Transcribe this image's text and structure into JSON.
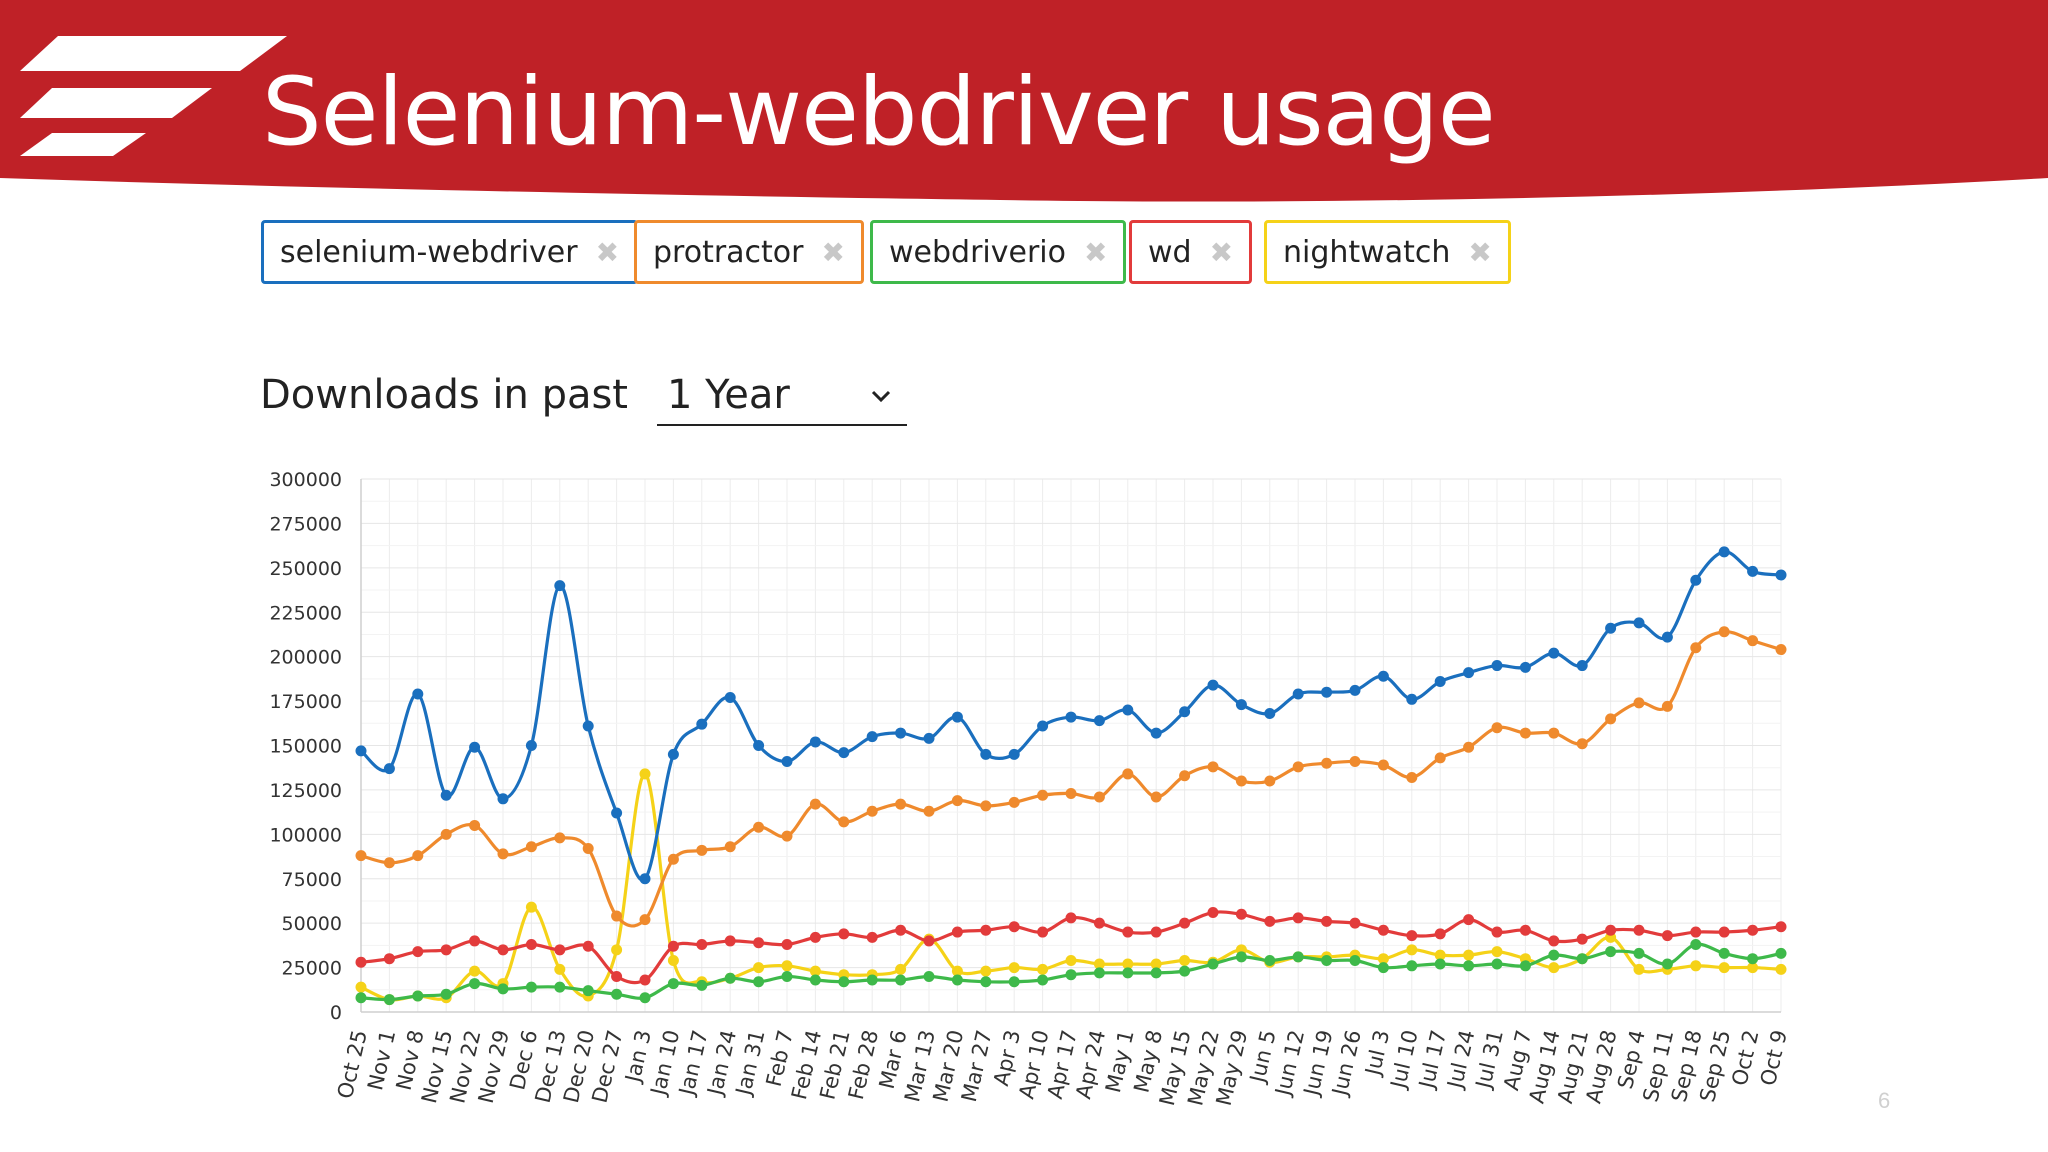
{
  "slide": {
    "title": "Selenium-webdriver usage",
    "page_number": "6",
    "colors": {
      "header": "#bf2127",
      "header_text": "#ffffff"
    }
  },
  "tags": [
    {
      "label": "selenium-webdriver",
      "color": "#1a6fbe"
    },
    {
      "label": "protractor",
      "color": "#ef8a2d"
    },
    {
      "label": "webdriverio",
      "color": "#3eb94a"
    },
    {
      "label": "wd",
      "color": "#e23b3b"
    },
    {
      "label": "nightwatch",
      "color": "#f5d218"
    }
  ],
  "period": {
    "label": "Downloads in past",
    "value": "1 Year"
  },
  "chart_data": {
    "type": "line",
    "title": "",
    "xlabel": "",
    "ylabel": "",
    "ylim": [
      0,
      300000
    ],
    "yticks": [
      0,
      25000,
      50000,
      75000,
      100000,
      125000,
      150000,
      175000,
      200000,
      225000,
      250000,
      275000,
      300000
    ],
    "grid": true,
    "categories": [
      "Oct 25",
      "Nov 1",
      "Nov 8",
      "Nov 15",
      "Nov 22",
      "Nov 29",
      "Dec 6",
      "Dec 13",
      "Dec 20",
      "Dec 27",
      "Jan 3",
      "Jan 10",
      "Jan 17",
      "Jan 24",
      "Jan 31",
      "Feb 7",
      "Feb 14",
      "Feb 21",
      "Feb 28",
      "Mar 6",
      "Mar 13",
      "Mar 20",
      "Mar 27",
      "Apr 3",
      "Apr 10",
      "Apr 17",
      "Apr 24",
      "May 1",
      "May 8",
      "May 15",
      "May 22",
      "May 29",
      "Jun 5",
      "Jun 12",
      "Jun 19",
      "Jun 26",
      "Jul 3",
      "Jul 10",
      "Jul 17",
      "Jul 24",
      "Jul 31",
      "Aug 7",
      "Aug 14",
      "Aug 21",
      "Aug 28",
      "Sep 4",
      "Sep 11",
      "Sep 18",
      "Sep 25",
      "Oct 2",
      "Oct 9"
    ],
    "series": [
      {
        "name": "selenium-webdriver",
        "color": "#1a6fbe",
        "values": [
          147000,
          137000,
          179000,
          122000,
          149000,
          120000,
          150000,
          240000,
          161000,
          112000,
          75000,
          145000,
          162000,
          177000,
          150000,
          141000,
          152000,
          146000,
          155000,
          157000,
          154000,
          166000,
          145000,
          145000,
          161000,
          166000,
          164000,
          170000,
          157000,
          169000,
          184000,
          173000,
          168000,
          179000,
          180000,
          181000,
          189000,
          176000,
          186000,
          191000,
          195000,
          194000,
          202000,
          195000,
          216000,
          219000,
          211000,
          243000,
          259000,
          248000,
          246000
        ]
      },
      {
        "name": "protractor",
        "color": "#ef8a2d",
        "values": [
          88000,
          84000,
          88000,
          100000,
          105000,
          89000,
          93000,
          98000,
          92000,
          54000,
          52000,
          86000,
          91000,
          93000,
          104000,
          99000,
          117000,
          107000,
          113000,
          117000,
          113000,
          119000,
          116000,
          118000,
          122000,
          123000,
          121000,
          134000,
          121000,
          133000,
          138000,
          130000,
          130000,
          138000,
          140000,
          141000,
          139000,
          132000,
          143000,
          149000,
          160000,
          157000,
          157000,
          151000,
          165000,
          174000,
          172000,
          205000,
          214000,
          209000,
          204000
        ]
      },
      {
        "name": "webdriverio",
        "color": "#3eb94a",
        "values": [
          8000,
          7000,
          9000,
          10000,
          16000,
          13000,
          14000,
          14000,
          12000,
          10000,
          8000,
          16000,
          15000,
          19000,
          17000,
          20000,
          18000,
          17000,
          18000,
          18000,
          20000,
          18000,
          17000,
          17000,
          18000,
          21000,
          22000,
          22000,
          22000,
          23000,
          27000,
          31000,
          29000,
          31000,
          29000,
          29000,
          25000,
          26000,
          27000,
          26000,
          27000,
          26000,
          32000,
          30000,
          34000,
          33000,
          27000,
          38000,
          33000,
          30000,
          33000
        ]
      },
      {
        "name": "wd",
        "color": "#e23b3b",
        "values": [
          28000,
          30000,
          34000,
          35000,
          40000,
          35000,
          38000,
          35000,
          37000,
          20000,
          18000,
          37000,
          38000,
          40000,
          39000,
          38000,
          42000,
          44000,
          42000,
          46000,
          40000,
          45000,
          46000,
          48000,
          45000,
          53000,
          50000,
          45000,
          45000,
          50000,
          56000,
          55000,
          51000,
          53000,
          51000,
          50000,
          46000,
          43000,
          44000,
          52000,
          45000,
          46000,
          40000,
          41000,
          46000,
          46000,
          43000,
          45000,
          45000,
          46000,
          48000
        ]
      },
      {
        "name": "nightwatch",
        "color": "#f5d218",
        "values": [
          14000,
          7000,
          9000,
          8000,
          23000,
          16000,
          59000,
          24000,
          9000,
          35000,
          134000,
          29000,
          17000,
          19000,
          25000,
          26000,
          23000,
          21000,
          21000,
          24000,
          41000,
          23000,
          23000,
          25000,
          24000,
          29000,
          27000,
          27000,
          27000,
          29000,
          28000,
          35000,
          28000,
          31000,
          31000,
          32000,
          30000,
          35000,
          32000,
          32000,
          34000,
          30000,
          25000,
          30000,
          42000,
          24000,
          24000,
          26000,
          25000,
          25000,
          24000
        ]
      }
    ]
  }
}
